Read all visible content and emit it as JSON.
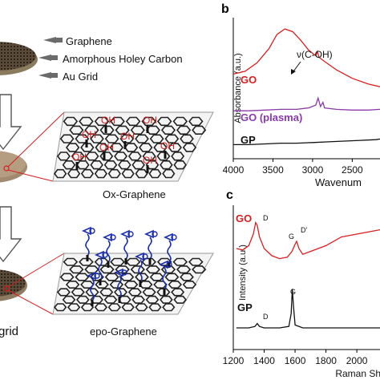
{
  "panel_labels": {
    "b": "b",
    "c": "c"
  },
  "schematic": {
    "callouts": [
      "Graphene",
      "Amorphous Holey Carbon",
      "Au Grid"
    ],
    "ox_label": "Ox-Graphene",
    "epo_label": "epo-Graphene",
    "grid_label": "grid",
    "oh": "OH"
  },
  "colors": {
    "go": "#d42020",
    "go_plasma": "#8b3aa8",
    "gp": "#111111",
    "blue": "#1a2ea8",
    "zoom": "#d42020"
  },
  "chart_data": [
    {
      "type": "line",
      "panel": "b",
      "xlabel": "Wavenum",
      "ylabel": "Absorbance (a.u.)",
      "x_ticks": [
        4000,
        3500,
        3000,
        2500
      ],
      "xlim": [
        4000,
        2150
      ],
      "annotation": "ν(C-OH)",
      "series": [
        {
          "name": "GO",
          "points": [
            [
              4000,
              0.6
            ],
            [
              3850,
              0.62
            ],
            [
              3700,
              0.68
            ],
            [
              3550,
              0.78
            ],
            [
              3450,
              0.88
            ],
            [
              3350,
              0.92
            ],
            [
              3250,
              0.9
            ],
            [
              3150,
              0.84
            ],
            [
              3050,
              0.77
            ],
            [
              2960,
              0.73
            ],
            [
              2940,
              0.76
            ],
            [
              2920,
              0.72
            ],
            [
              2850,
              0.69
            ],
            [
              2700,
              0.63
            ],
            [
              2500,
              0.57
            ],
            [
              2300,
              0.53
            ],
            [
              2150,
              0.51
            ]
          ]
        },
        {
          "name": "GO (plasma)",
          "points": [
            [
              4000,
              0.34
            ],
            [
              3800,
              0.34
            ],
            [
              3600,
              0.345
            ],
            [
              3400,
              0.35
            ],
            [
              3200,
              0.35
            ],
            [
              3050,
              0.36
            ],
            [
              2960,
              0.38
            ],
            [
              2930,
              0.43
            ],
            [
              2900,
              0.37
            ],
            [
              2870,
              0.4
            ],
            [
              2850,
              0.36
            ],
            [
              2700,
              0.35
            ],
            [
              2500,
              0.345
            ],
            [
              2300,
              0.345
            ],
            [
              2150,
              0.35
            ]
          ]
        },
        {
          "name": "GP",
          "points": [
            [
              4000,
              0.1
            ],
            [
              3800,
              0.1
            ],
            [
              3600,
              0.105
            ],
            [
              3400,
              0.11
            ],
            [
              3200,
              0.11
            ],
            [
              3000,
              0.115
            ],
            [
              2800,
              0.12
            ],
            [
              2600,
              0.125
            ],
            [
              2400,
              0.13
            ],
            [
              2200,
              0.135
            ],
            [
              2150,
              0.14
            ]
          ]
        }
      ]
    },
    {
      "type": "line",
      "panel": "c",
      "xlabel": "Raman Shi",
      "ylabel": "Intensity (a.u.)",
      "x_ticks": [
        1200,
        1400,
        1600,
        1800,
        2000
      ],
      "xlim": [
        1200,
        2150
      ],
      "peaks": {
        "go_d": "D",
        "go_g": "G",
        "go_d_prime": "D'",
        "gp_d": "D",
        "gp_g": "G"
      },
      "series": [
        {
          "name": "GO",
          "points": [
            [
              1220,
              0.7
            ],
            [
              1260,
              0.69
            ],
            [
              1300,
              0.72
            ],
            [
              1330,
              0.8
            ],
            [
              1345,
              0.88
            ],
            [
              1355,
              0.86
            ],
            [
              1370,
              0.78
            ],
            [
              1400,
              0.7
            ],
            [
              1450,
              0.65
            ],
            [
              1500,
              0.63
            ],
            [
              1550,
              0.64
            ],
            [
              1580,
              0.68
            ],
            [
              1600,
              0.73
            ],
            [
              1610,
              0.75
            ],
            [
              1625,
              0.7
            ],
            [
              1650,
              0.66
            ],
            [
              1700,
              0.68
            ],
            [
              1800,
              0.72
            ],
            [
              1900,
              0.78
            ],
            [
              2000,
              0.8
            ],
            [
              2100,
              0.82
            ],
            [
              2150,
              0.83
            ]
          ]
        },
        {
          "name": "GP",
          "points": [
            [
              1220,
              0.15
            ],
            [
              1300,
              0.15
            ],
            [
              1340,
              0.16
            ],
            [
              1355,
              0.18
            ],
            [
              1370,
              0.16
            ],
            [
              1400,
              0.15
            ],
            [
              1500,
              0.15
            ],
            [
              1560,
              0.16
            ],
            [
              1575,
              0.25
            ],
            [
              1582,
              0.42
            ],
            [
              1590,
              0.3
            ],
            [
              1600,
              0.17
            ],
            [
              1650,
              0.15
            ],
            [
              1800,
              0.15
            ],
            [
              2000,
              0.15
            ],
            [
              2150,
              0.15
            ]
          ]
        }
      ]
    }
  ]
}
